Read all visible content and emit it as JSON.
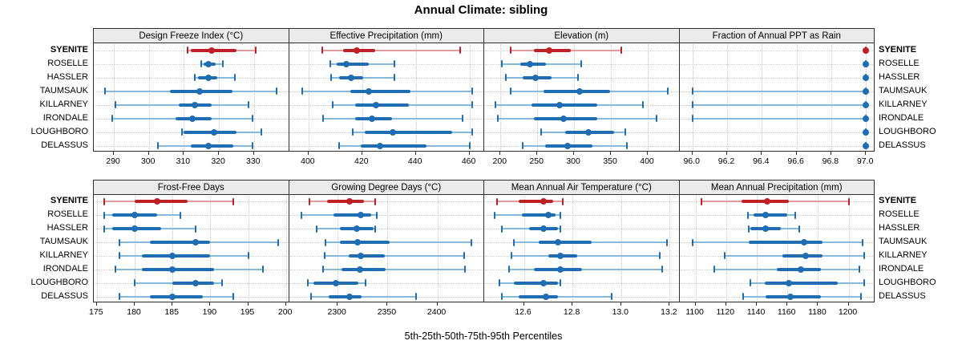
{
  "title": "Annual Climate: sibling",
  "footer": "5th-25th-50th-75th-95th Percentiles",
  "sites": [
    "SYENITE",
    "ROSELLE",
    "HASSLER",
    "TAUMSAUK",
    "KILLARNEY",
    "IRONDALE",
    "LOUGHBORO",
    "DELASSUS"
  ],
  "highlight_site": "SYENITE",
  "colors": {
    "highlight_main": "#bf2026",
    "highlight_light": "#e29b9d",
    "normal_main": "#1f6eb3",
    "normal_light": "#85bada",
    "header_bg": "#ebebeb",
    "border": "#2e2e2e",
    "grid": "#c9c9c9"
  },
  "chart_data": {
    "type": "percentile_interval_dotplot",
    "title": "Annual Climate: sibling",
    "note": "5th-25th-50th-75th-95th Percentiles",
    "categories": [
      "SYENITE",
      "ROSELLE",
      "HASSLER",
      "TAUMSAUK",
      "KILLARNEY",
      "IRONDALE",
      "LOUGHBORO",
      "DELASSUS"
    ],
    "percentile_order": [
      "p5",
      "p25",
      "p50",
      "p75",
      "p95"
    ],
    "legend": "none",
    "grid": "dotted",
    "panels": [
      {
        "title": "Design Freeze Index (°C)",
        "row": 0,
        "col": 0,
        "xlim": [
          284.5,
          340
        ],
        "ticks": [
          290,
          300,
          310,
          320,
          330
        ],
        "tick_labels": [
          "290",
          "300",
          "310",
          "320",
          "330"
        ],
        "values": [
          [
            311,
            312,
            318,
            325,
            330.5
          ],
          [
            315,
            315.5,
            317,
            319,
            321
          ],
          [
            313,
            314,
            317,
            319.5,
            324.5
          ],
          [
            287.5,
            306,
            314.5,
            324,
            336.5
          ],
          [
            290.5,
            308.5,
            313,
            318,
            328.5
          ],
          [
            289.5,
            307.5,
            312.5,
            318,
            329.5
          ],
          [
            309.5,
            310,
            318.5,
            325,
            332
          ],
          [
            302.5,
            312,
            317,
            324,
            329.5
          ]
        ]
      },
      {
        "title": "Effective Precipitation (mm)",
        "row": 0,
        "col": 1,
        "xlim": [
          393,
          465.5
        ],
        "ticks": [
          400,
          420,
          440,
          460
        ],
        "tick_labels": [
          "400",
          "420",
          "440",
          "460"
        ],
        "values": [
          [
            405,
            413,
            418,
            425,
            456.5
          ],
          [
            408,
            410.5,
            414,
            422.5,
            432
          ],
          [
            408.5,
            411.5,
            416,
            420.5,
            432
          ],
          [
            397.5,
            415.5,
            422.5,
            438,
            461
          ],
          [
            409,
            417.5,
            425,
            437.5,
            461
          ],
          [
            405.5,
            417.5,
            423.5,
            431,
            457.5
          ],
          [
            416.5,
            421,
            431.5,
            453.5,
            461
          ],
          [
            411.5,
            419.5,
            426.5,
            444,
            460
          ]
        ]
      },
      {
        "title": "Elevation (m)",
        "row": 0,
        "col": 2,
        "xlim": [
          179,
          443
        ],
        "ticks": [
          200,
          250,
          300,
          350,
          400
        ],
        "tick_labels": [
          "200",
          "250",
          "300",
          "350",
          "400"
        ],
        "values": [
          [
            214,
            245,
            266,
            296,
            364
          ],
          [
            202,
            227,
            240,
            262,
            310
          ],
          [
            207,
            230,
            248,
            270,
            305
          ],
          [
            214,
            258,
            307,
            349,
            427
          ],
          [
            193,
            242,
            280,
            331,
            393
          ],
          [
            196,
            245,
            286,
            332,
            412
          ],
          [
            255,
            288,
            319,
            354,
            369
          ],
          [
            230,
            261,
            291,
            325,
            372
          ]
        ]
      },
      {
        "title": "Fraction of Annual PPT as Rain",
        "row": 0,
        "col": 3,
        "xlim": [
          95.93,
          97.05
        ],
        "ticks": [
          96.0,
          96.2,
          96.4,
          96.6,
          96.8,
          97.0
        ],
        "tick_labels": [
          "96.0",
          "96.2",
          "96.4",
          "96.6",
          "96.8",
          "97.0"
        ],
        "values": [
          [
            97,
            97,
            97,
            97,
            97
          ],
          [
            97,
            97,
            97,
            97,
            97
          ],
          [
            97,
            97,
            97,
            97,
            97
          ],
          [
            96,
            97,
            97,
            97,
            97
          ],
          [
            96,
            97,
            97,
            97,
            97
          ],
          [
            96,
            97,
            97,
            97,
            97
          ],
          [
            97,
            97,
            97,
            97,
            97
          ],
          [
            97,
            97,
            97,
            97,
            97
          ]
        ]
      },
      {
        "title": "Frost-Free Days",
        "row": 1,
        "col": 0,
        "xlim": [
          174.7,
          200.4
        ],
        "ticks": [
          175,
          180,
          185,
          190,
          195,
          200
        ],
        "tick_labels": [
          "175",
          "180",
          "185",
          "190",
          "195",
          "200"
        ],
        "values": [
          [
            176,
            180,
            183,
            187,
            193
          ],
          [
            176,
            177,
            180,
            183,
            186
          ],
          [
            176,
            177,
            180,
            183.5,
            188
          ],
          [
            178,
            182,
            188,
            190,
            199
          ],
          [
            178,
            181,
            185,
            190,
            195
          ],
          [
            177.5,
            181,
            185,
            190.5,
            197
          ],
          [
            180,
            185,
            188,
            190.5,
            191.5
          ],
          [
            178,
            182,
            185,
            189,
            193
          ]
        ]
      },
      {
        "title": "Growing Degree Days (°C)",
        "row": 1,
        "col": 1,
        "xlim": [
          2252,
          2447
        ],
        "ticks": [
          2300,
          2350,
          2400
        ],
        "tick_labels": [
          "2300",
          "2350",
          "2400"
        ],
        "values": [
          [
            2272,
            2289,
            2312,
            2326,
            2338
          ],
          [
            2264,
            2296,
            2323,
            2334,
            2339
          ],
          [
            2279,
            2302,
            2319,
            2336,
            2338
          ],
          [
            2288,
            2302,
            2320,
            2352,
            2434
          ],
          [
            2287,
            2311,
            2323,
            2347,
            2427
          ],
          [
            2285,
            2304,
            2322,
            2348,
            2428
          ],
          [
            2270,
            2276,
            2298,
            2321,
            2328
          ],
          [
            2273,
            2291,
            2312,
            2324,
            2379
          ]
        ]
      },
      {
        "title": "Mean Annual Air Temperature (°C)",
        "row": 1,
        "col": 2,
        "xlim": [
          12.44,
          13.24
        ],
        "ticks": [
          12.6,
          12.8,
          13.0,
          13.2
        ],
        "tick_labels": [
          "12.6",
          "12.8",
          "13.0",
          "13.2"
        ],
        "values": [
          [
            12.49,
            12.58,
            12.68,
            12.72,
            12.76
          ],
          [
            12.48,
            12.59,
            12.7,
            12.73,
            12.75
          ],
          [
            12.51,
            12.62,
            12.68,
            12.74,
            12.75
          ],
          [
            12.56,
            12.66,
            12.74,
            12.88,
            13.19
          ],
          [
            12.55,
            12.7,
            12.75,
            12.82,
            13.16
          ],
          [
            12.54,
            12.64,
            12.75,
            12.84,
            13.17
          ],
          [
            12.5,
            12.56,
            12.68,
            12.74,
            12.75
          ],
          [
            12.51,
            12.58,
            12.69,
            12.74,
            12.96
          ]
        ]
      },
      {
        "title": "Mean Annual Precipitation (mm)",
        "row": 1,
        "col": 3,
        "xlim": [
          1090,
          1217
        ],
        "ticks": [
          1100,
          1120,
          1140,
          1160,
          1180,
          1200
        ],
        "tick_labels": [
          "1100",
          "1120",
          "1140",
          "1160",
          "1180",
          "1200"
        ],
        "values": [
          [
            1104,
            1130,
            1147,
            1161,
            1200
          ],
          [
            1134,
            1138,
            1146,
            1160,
            1165
          ],
          [
            1135,
            1136,
            1146,
            1156,
            1168
          ],
          [
            1098,
            1135,
            1171,
            1183,
            1209
          ],
          [
            1119,
            1157,
            1172,
            1183,
            1210
          ],
          [
            1112,
            1153,
            1169,
            1182,
            1207
          ],
          [
            1136,
            1145,
            1161,
            1193,
            1210
          ],
          [
            1131,
            1146,
            1162,
            1182,
            1208
          ]
        ]
      }
    ]
  }
}
